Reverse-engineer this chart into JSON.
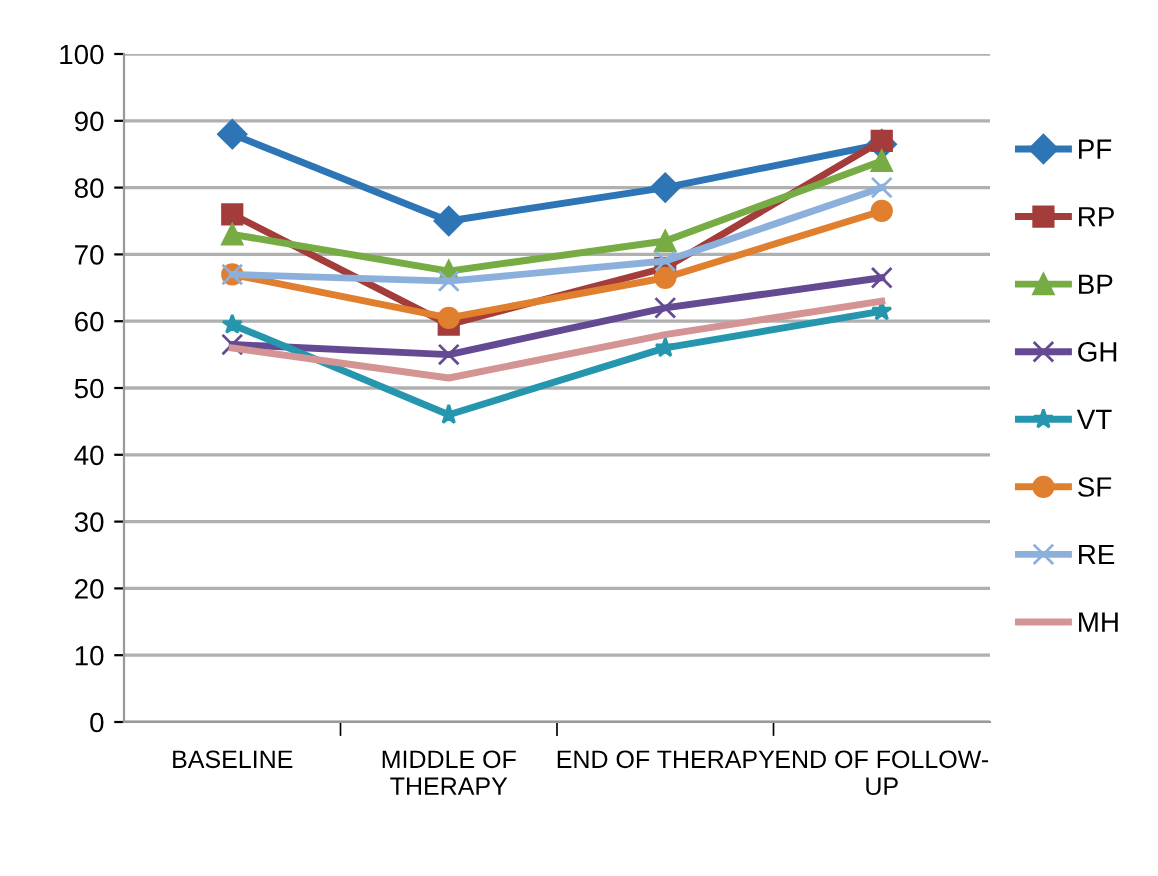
{
  "chart_data": {
    "type": "line",
    "categories": [
      "BASELINE",
      "MIDDLE OF\nTHERAPY",
      "END OF THERAPY",
      "END OF FOLLOW-\nUP"
    ],
    "series": [
      {
        "name": "PF",
        "color": "#2e75b6",
        "marker": "diamond",
        "values": [
          88,
          75,
          80,
          86.5
        ]
      },
      {
        "name": "RP",
        "color": "#a33c3a",
        "marker": "square",
        "values": [
          76,
          59.5,
          68,
          87
        ]
      },
      {
        "name": "BP",
        "color": "#77ac44",
        "marker": "triangle",
        "values": [
          73,
          67.5,
          72,
          84
        ]
      },
      {
        "name": "GH",
        "color": "#634a93",
        "marker": "cross",
        "values": [
          56.5,
          55,
          62,
          66.5
        ]
      },
      {
        "name": "VT",
        "color": "#2596ad",
        "marker": "star",
        "values": [
          59.5,
          46,
          56,
          61.5
        ]
      },
      {
        "name": "SF",
        "color": "#e07f2e",
        "marker": "circle",
        "values": [
          67,
          60.5,
          66.5,
          76.5
        ]
      },
      {
        "name": "RE",
        "color": "#8cb0dc",
        "marker": "cross",
        "values": [
          67,
          66,
          69,
          80
        ]
      },
      {
        "name": "MH",
        "color": "#d49494",
        "marker": "none",
        "values": [
          56,
          51.5,
          58,
          63
        ]
      }
    ],
    "ylim": [
      0,
      100
    ],
    "yticks": [
      0,
      10,
      20,
      30,
      40,
      50,
      60,
      70,
      80,
      90,
      100
    ],
    "grid": "y",
    "legend": "right",
    "line_style": "solid"
  }
}
